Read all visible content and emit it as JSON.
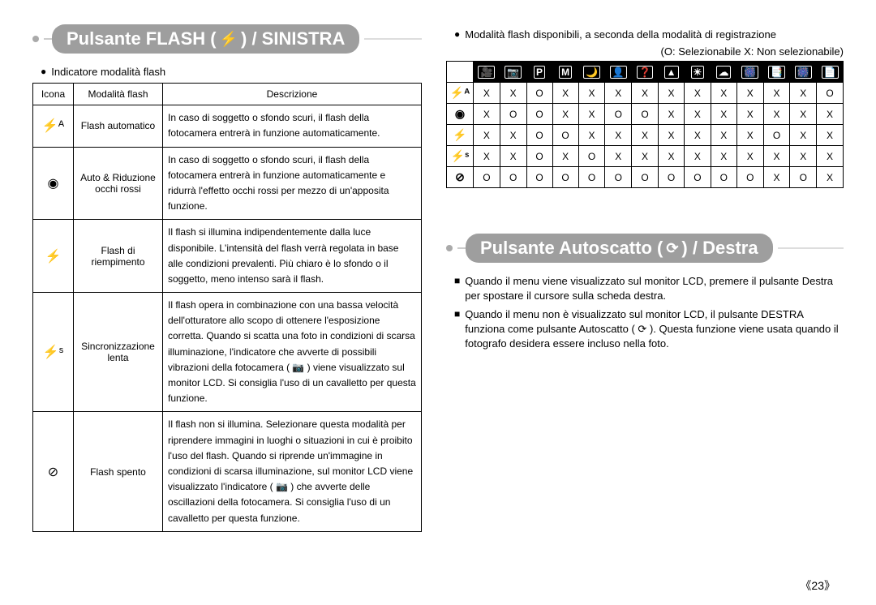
{
  "left": {
    "title_prefix": "Pulsante FLASH (",
    "title_icon": "⚡",
    "title_suffix": ") / SINISTRA",
    "subtitle": "Indicatore modalità flash",
    "headers": {
      "icon": "Icona",
      "mode": "Modalità flash",
      "desc": "Descrizione"
    },
    "rows": [
      {
        "icon": "⚡ᴬ",
        "mode": "Flash automatico",
        "desc": "In caso di soggetto o sfondo scuri, il flash della fotocamera entrerà in funzione automaticamente."
      },
      {
        "icon": "◉",
        "mode": "Auto & Riduzione occhi rossi",
        "desc": "In caso di soggetto o sfondo scuri, il flash della fotocamera entrerà in funzione automaticamente e ridurrà l'effetto occhi rossi per mezzo di un'apposita funzione."
      },
      {
        "icon": "⚡",
        "mode": "Flash di riempimento",
        "desc": "Il flash si illumina indipendentemente dalla luce disponibile. L'intensità del flash verrà regolata in base alle condizioni prevalenti. Più chiaro è lo sfondo o il soggetto, meno intenso sarà il flash."
      },
      {
        "icon": "⚡ˢ",
        "mode": "Sincronizzazione lenta",
        "desc": "Il flash opera in combinazione con una bassa velocità dell'otturatore allo scopo di ottenere l'esposizione corretta. Quando si scatta una foto in condizioni di scarsa illuminazione, l'indicatore che avverte di possibili vibrazioni della fotocamera ( 📷 ) viene visualizzato sul monitor LCD. Si consiglia l'uso di un cavalletto per questa funzione."
      },
      {
        "icon": "⊘",
        "mode": "Flash spento",
        "desc": "Il flash non si illumina. Selezionare questa modalità per riprendere immagini in luoghi o situazioni in cui è proibito l'uso del flash. Quando si riprende un'immagine in condizioni di scarsa illuminazione, sul monitor LCD viene visualizzato l'indicatore ( 📷 ) che avverte delle oscillazioni della fotocamera. Si consiglia l'uso di un cavalletto per questa funzione."
      }
    ]
  },
  "right": {
    "subtitle": "Modalità flash disponibili, a seconda della modalità di registrazione",
    "legend": "(O: Selezionabile X: Non selezionabile)",
    "col_icons": [
      "🎥",
      "📷",
      "P",
      "M",
      "🌙",
      "👤",
      "❓",
      "▲",
      "☀",
      "☁",
      "🎆",
      "📑",
      "🎆",
      "📄"
    ],
    "row_icons": [
      "⚡ᴬ",
      "◉",
      "⚡",
      "⚡ˢ",
      "⊘"
    ],
    "cells": [
      [
        "X",
        "X",
        "O",
        "X",
        "X",
        "X",
        "X",
        "X",
        "X",
        "X",
        "X",
        "X",
        "X",
        "O"
      ],
      [
        "X",
        "O",
        "O",
        "X",
        "X",
        "O",
        "O",
        "X",
        "X",
        "X",
        "X",
        "X",
        "X",
        "X"
      ],
      [
        "X",
        "X",
        "O",
        "O",
        "X",
        "X",
        "X",
        "X",
        "X",
        "X",
        "X",
        "O",
        "X",
        "X"
      ],
      [
        "X",
        "X",
        "O",
        "X",
        "O",
        "X",
        "X",
        "X",
        "X",
        "X",
        "X",
        "X",
        "X",
        "X"
      ],
      [
        "O",
        "O",
        "O",
        "O",
        "O",
        "O",
        "O",
        "O",
        "O",
        "O",
        "O",
        "X",
        "O",
        "X"
      ]
    ],
    "section2": {
      "title_prefix": "Pulsante Autoscatto (",
      "title_icon": "⟳",
      "title_suffix": ") / Destra",
      "bullets": [
        "Quando il menu viene visualizzato sul monitor LCD, premere il pulsante Destra per spostare il cursore sulla scheda destra.",
        "Quando il menu non è visualizzato sul monitor LCD, il pulsante DESTRA funziona come pulsante Autoscatto ( ⟳ ). Questa funzione viene usata quando il fotografo desidera essere incluso nella foto."
      ]
    }
  },
  "page_number": "《23》"
}
